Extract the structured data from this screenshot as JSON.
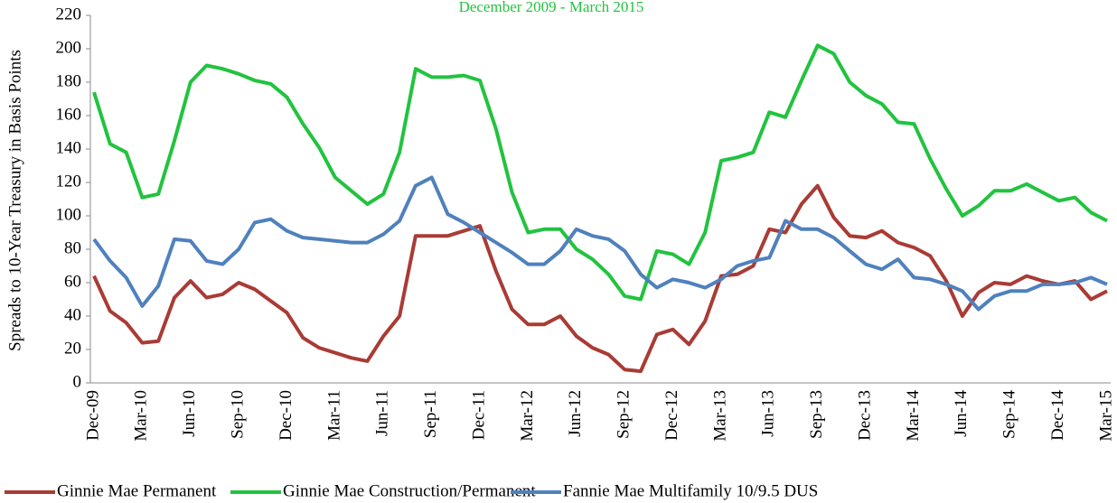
{
  "chart_data": {
    "type": "line",
    "title": "December 2009 - March 2015",
    "y_label": "Spreads to 10-Year Treasury in Basis  Points",
    "categories": [
      "Dec-09",
      null,
      null,
      "Mar-10",
      null,
      null,
      "Jun-10",
      null,
      null,
      "Sep-10",
      null,
      null,
      "Dec-10",
      null,
      null,
      "Mar-11",
      null,
      null,
      "Jun-11",
      null,
      null,
      "Sep-11",
      null,
      null,
      "Dec-11",
      null,
      null,
      "Mar-12",
      null,
      null,
      "Jun-12",
      null,
      null,
      "Sep-12",
      null,
      null,
      "Dec-12",
      null,
      null,
      "Mar-13",
      null,
      null,
      "Jun-13",
      null,
      null,
      "Sep-13",
      null,
      null,
      "Dec-13",
      null,
      null,
      "Mar-14",
      null,
      null,
      "Jun-14",
      null,
      null,
      "Sep-14",
      null,
      null,
      "Dec-14",
      null,
      null,
      "Mar-15"
    ],
    "series": [
      {
        "name": "Ginnie Mae Permanent",
        "color": "#a93b35",
        "values": [
          64,
          43,
          36,
          24,
          25,
          51,
          61,
          51,
          53,
          60,
          56,
          49,
          42,
          27,
          21,
          18,
          15,
          13,
          28,
          40,
          88,
          88,
          88,
          91,
          94,
          67,
          44,
          35,
          35,
          40,
          28,
          21,
          17,
          8,
          7,
          29,
          32,
          23,
          37,
          64,
          65,
          70,
          92,
          90,
          107,
          118,
          99,
          88,
          87,
          91,
          84,
          81,
          76,
          61,
          40,
          54,
          60,
          59,
          64,
          61,
          59,
          61,
          50,
          55
        ]
      },
      {
        "name": "Ginnie Mae Construction/Permanent",
        "color": "#22c33f",
        "values": [
          174,
          143,
          138,
          111,
          113,
          145,
          180,
          190,
          188,
          185,
          181,
          179,
          171,
          155,
          141,
          123,
          115,
          107,
          113,
          138,
          188,
          183,
          183,
          184,
          181,
          152,
          114,
          90,
          92,
          92,
          80,
          74,
          65,
          52,
          50,
          79,
          77,
          71,
          90,
          133,
          135,
          138,
          162,
          159,
          181,
          202,
          197,
          180,
          172,
          167,
          156,
          155,
          134,
          116,
          100,
          106,
          115,
          115,
          119,
          114,
          109,
          111,
          102,
          97
        ]
      },
      {
        "name": "Fannie Mae Multifamily 10/9.5 DUS",
        "color": "#4f81bd",
        "values": [
          86,
          73,
          63,
          46,
          58,
          86,
          85,
          73,
          71,
          80,
          96,
          98,
          91,
          87,
          86,
          85,
          84,
          84,
          89,
          97,
          118,
          123,
          101,
          96,
          90,
          84,
          78,
          71,
          71,
          79,
          92,
          88,
          86,
          79,
          65,
          57,
          62,
          60,
          57,
          62,
          70,
          73,
          75,
          97,
          92,
          92,
          87,
          79,
          71,
          68,
          74,
          63,
          62,
          59,
          55,
          44,
          52,
          55,
          55,
          59,
          59,
          60,
          63,
          59
        ]
      }
    ],
    "ylim": [
      0,
      220
    ],
    "yticks": [
      0,
      20,
      40,
      60,
      80,
      100,
      120,
      140,
      160,
      180,
      200,
      220
    ],
    "grid": false,
    "legend": "bottom"
  }
}
